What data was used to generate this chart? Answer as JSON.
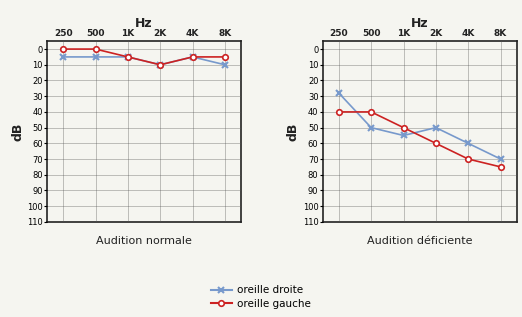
{
  "freq_labels": [
    "250",
    "500",
    "1K",
    "2K",
    "4K",
    "8K"
  ],
  "freq_x": [
    0,
    1,
    2,
    3,
    4,
    5
  ],
  "normal_droite": [
    5,
    5,
    5,
    10,
    5,
    10
  ],
  "normal_gauche": [
    0,
    0,
    5,
    10,
    5,
    5
  ],
  "deficiente_droite": [
    28,
    50,
    55,
    50,
    60,
    70
  ],
  "deficiente_gauche": [
    40,
    40,
    50,
    60,
    70,
    75
  ],
  "color_droite": "#7799cc",
  "color_gauche": "#cc2222",
  "ylim_min": -5,
  "ylim_max": 110,
  "yticks": [
    0,
    10,
    20,
    30,
    40,
    50,
    60,
    70,
    80,
    90,
    100,
    110
  ],
  "title_normal": "Audition normale",
  "title_deficiente": "Audition déficiente",
  "xlabel": "Hz",
  "ylabel": "dB",
  "legend_droite": "oreille droite",
  "legend_gauche": "oreille gauche",
  "background_color": "#f5f5f0",
  "grid_color": "#555555"
}
